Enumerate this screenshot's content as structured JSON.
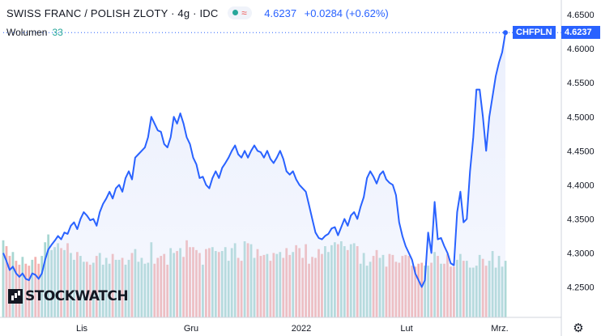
{
  "header": {
    "title": "SWISS FRANC / POLISH ZLOTY · 4g · IDC",
    "price": "4.6237",
    "change": "+0.0284 (+0.62%)"
  },
  "volume": {
    "label": "Wolumen",
    "value": "33"
  },
  "last_price_tag": {
    "symbol": "CHFPLN",
    "value": "4.6237"
  },
  "logo": {
    "text": "STOCKWATCH"
  },
  "colors": {
    "line": "#2962ff",
    "area": "#dbe3fb",
    "vol_up": "#a8d7d2",
    "vol_down": "#f3b2b0",
    "axis_text": "#131722"
  },
  "chart_data": {
    "type": "area",
    "x_ticks": [
      "Lis",
      "Gru",
      "2022",
      "Lut",
      "Mrz."
    ],
    "y_ticks": [
      "4.2500",
      "4.3000",
      "4.3500",
      "4.4000",
      "4.4500",
      "4.5000",
      "4.5500",
      "4.6000",
      "4.6500"
    ],
    "ylim": [
      4.2,
      4.65
    ],
    "grid": false,
    "series": [
      {
        "values": [
          4.3,
          4.288,
          4.275,
          4.28,
          4.27,
          4.265,
          4.27,
          4.262,
          4.26,
          4.27,
          4.268,
          4.262,
          4.27,
          4.29,
          4.305,
          4.312,
          4.318,
          4.325,
          4.32,
          4.33,
          4.328,
          4.34,
          4.345,
          4.335,
          4.35,
          4.36,
          4.355,
          4.348,
          4.35,
          4.34,
          4.36,
          4.372,
          4.38,
          4.39,
          4.38,
          4.395,
          4.4,
          4.39,
          4.41,
          4.42,
          4.408,
          4.44,
          4.445,
          4.45,
          4.455,
          4.47,
          4.5,
          4.49,
          4.48,
          4.478,
          4.46,
          4.455,
          4.47,
          4.5,
          4.49,
          4.505,
          4.49,
          4.47,
          4.46,
          4.44,
          4.43,
          4.41,
          4.412,
          4.4,
          4.395,
          4.41,
          4.42,
          4.41,
          4.425,
          4.432,
          4.44,
          4.45,
          4.458,
          4.445,
          4.44,
          4.45,
          4.44,
          4.45,
          4.458,
          4.45,
          4.448,
          4.44,
          4.45,
          4.438,
          4.432,
          4.44,
          4.45,
          4.438,
          4.42,
          4.415,
          4.42,
          4.408,
          4.4,
          4.395,
          4.39,
          4.37,
          4.35,
          4.33,
          4.322,
          4.32,
          4.325,
          4.328,
          4.336,
          4.338,
          4.326,
          4.338,
          4.35,
          4.34,
          4.355,
          4.36,
          4.35,
          4.368,
          4.382,
          4.41,
          4.42,
          4.412,
          4.402,
          4.415,
          4.42,
          4.408,
          4.403,
          4.4,
          4.385,
          4.345,
          4.325,
          4.31,
          4.3,
          4.29,
          4.27,
          4.26,
          4.25,
          4.26,
          4.33,
          4.3,
          4.375,
          4.32,
          4.322,
          4.31,
          4.3,
          4.285,
          4.282,
          4.36,
          4.39,
          4.345,
          4.35,
          4.42,
          4.47,
          4.54,
          4.54,
          4.5,
          4.45,
          4.5,
          4.53,
          4.56,
          4.58,
          4.595,
          4.6237
        ],
        "volumes": [
          0.79,
          0.73,
          0.63,
          0.67,
          0.58,
          0.54,
          0.62,
          0.55,
          0.53,
          0.59,
          0.62,
          0.55,
          0.63,
          0.77,
          0.85,
          0.69,
          0.72,
          0.76,
          0.71,
          0.69,
          0.76,
          0.66,
          0.59,
          0.67,
          0.63,
          0.57,
          0.57,
          0.54,
          0.56,
          0.63,
          0.66,
          0.54,
          0.61,
          0.55,
          0.65,
          0.59,
          0.59,
          0.61,
          0.54,
          0.59,
          0.66,
          0.7,
          0.57,
          0.61,
          0.55,
          0.56,
          0.77,
          0.55,
          0.61,
          0.63,
          0.65,
          0.54,
          0.71,
          0.66,
          0.68,
          0.71,
          0.62,
          0.79,
          0.72,
          0.72,
          0.69,
          0.66,
          0.54,
          0.7,
          0.71,
          0.72,
          0.68,
          0.67,
          0.68,
          0.72,
          0.58,
          0.71,
          0.76,
          0.61,
          0.58,
          0.78,
          0.76,
          0.75,
          0.61,
          0.7,
          0.63,
          0.64,
          0.65,
          0.58,
          0.66,
          0.65,
          0.67,
          0.61,
          0.71,
          0.64,
          0.67,
          0.74,
          0.71,
          0.61,
          0.75,
          0.55,
          0.62,
          0.61,
          0.7,
          0.65,
          0.73,
          0.67,
          0.74,
          0.77,
          0.75,
          0.78,
          0.73,
          0.69,
          0.75,
          0.76,
          0.73,
          0.55,
          0.66,
          0.53,
          0.57,
          0.63,
          0.69,
          0.61,
          0.64,
          0.52,
          0.65,
          0.64,
          0.57,
          0.56,
          0.63,
          0.64,
          0.63,
          0.53,
          0.52,
          0.55,
          0.56,
          0.53,
          0.53,
          0.56,
          0.67,
          0.63,
          0.55,
          0.55,
          0.65,
          0.52,
          0.52,
          0.59,
          0.65,
          0.58,
          0.58,
          0.51,
          0.51,
          0.53,
          0.64,
          0.6,
          0.53,
          0.58,
          0.68,
          0.51,
          0.63,
          0.52,
          0.58
        ]
      }
    ]
  }
}
